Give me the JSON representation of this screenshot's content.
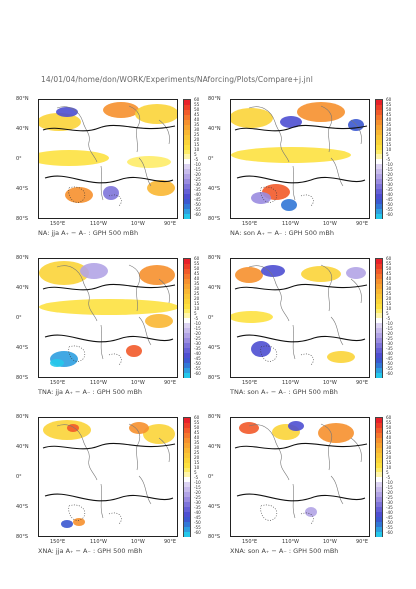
{
  "header": "14/01/04/home/don/WORK/Experiments/NAforcing/Plots/Compare+j.jnl",
  "lat_labels": [
    "80°N",
    "40°N",
    "0°",
    "40°S",
    "80°S"
  ],
  "lon_labels": [
    "150°E",
    "110°W",
    "10°W",
    "90°E"
  ],
  "colorbar": {
    "labels": [
      "60",
      "55",
      "50",
      "45",
      "40",
      "35",
      "30",
      "25",
      "20",
      "15",
      "10",
      "5",
      "-5",
      "-10",
      "-15",
      "-20",
      "-25",
      "-30",
      "-35",
      "-40",
      "-45",
      "-50",
      "-55",
      "-60"
    ],
    "colors": [
      "#e8202a",
      "#ee3d28",
      "#f25a2a",
      "#f5762c",
      "#f6902e",
      "#f8a430",
      "#f9b733",
      "#fac736",
      "#fbd438",
      "#fde140",
      "#feec68",
      "#fff6aa",
      "#ffffff",
      "#dcd3f2",
      "#c8bcec",
      "#b2a4e6",
      "#9a8ce0",
      "#7e74da",
      "#6560d6",
      "#4e4fd2",
      "#3b58d0",
      "#3277d6",
      "#2d9ee0",
      "#25c8ea"
    ]
  },
  "panels": [
    {
      "id": "na-jja",
      "region": "NA",
      "season": "jja",
      "caption": "NA: jja A₊ − A₋ : GPH 500 mBh"
    },
    {
      "id": "na-son",
      "region": "NA",
      "season": "son",
      "caption": "NA: son A₊ − A₋ : GPH 500 mBh"
    },
    {
      "id": "tna-jja",
      "region": "TNA",
      "season": "jja",
      "caption": "TNA: jja A₊ − A₋ : GPH 500 mBh"
    },
    {
      "id": "tna-son",
      "region": "TNA",
      "season": "son",
      "caption": "TNA: son A₊ − A₋ : GPH 500 mBh"
    },
    {
      "id": "xna-jja",
      "region": "XNA",
      "season": "jja",
      "caption": "XNA: jja A₊ − A₋ : GPH 500 mBh"
    },
    {
      "id": "xna-son",
      "region": "XNA",
      "season": "son",
      "caption": "XNA: son A₊ − A₋ : GPH 500 mBh"
    }
  ]
}
